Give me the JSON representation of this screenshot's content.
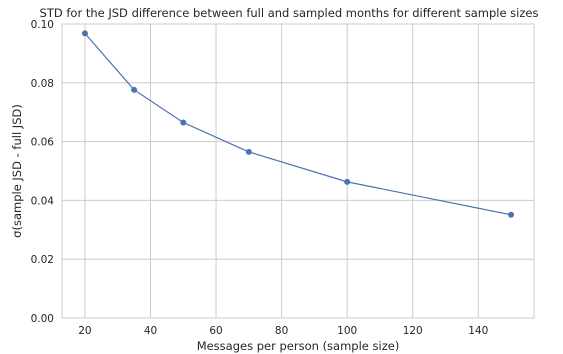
{
  "chart_data": {
    "type": "line",
    "title": "STD for the JSD difference between full and sampled months for different sample sizes",
    "xlabel": "Messages per person (sample size)",
    "ylabel": "σ(sample JSD - full JSD)",
    "x": [
      20,
      35,
      50,
      70,
      100,
      150
    ],
    "series": [
      {
        "values": [
          0.0968,
          0.0776,
          0.0665,
          0.0565,
          0.0463,
          0.0351
        ],
        "color": "#4c72b0"
      }
    ],
    "xlim": [
      13,
      157
    ],
    "ylim": [
      0,
      0.1
    ],
    "xticks": [
      "20",
      "40",
      "60",
      "80",
      "100",
      "120",
      "140"
    ],
    "xtick_values": [
      20,
      40,
      60,
      80,
      100,
      120,
      140
    ],
    "yticks": [
      "0.00",
      "0.02",
      "0.04",
      "0.06",
      "0.08",
      "0.10"
    ],
    "ytick_values": [
      0,
      0.02,
      0.04,
      0.06,
      0.08,
      0.1
    ],
    "grid": true,
    "marker": "circle"
  }
}
